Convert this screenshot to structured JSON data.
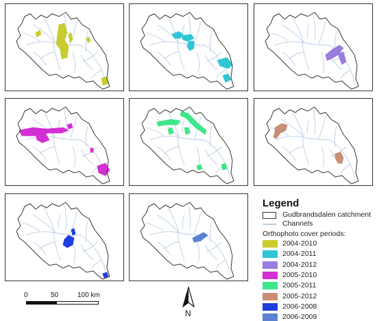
{
  "legend": {
    "title": "Legend",
    "catchment_label": "Gudbrandsdalen catchment",
    "channels_label": "Channels",
    "periods_title": "Orthophoto cover periods:",
    "periods": [
      {
        "label": "2004-2010",
        "color": "#c8cc2e"
      },
      {
        "label": "2004-2011",
        "color": "#2ec6d2"
      },
      {
        "label": "2004-2012",
        "color": "#9a7be0"
      },
      {
        "label": "2005-2010",
        "color": "#d42fd4"
      },
      {
        "label": "2005-2011",
        "color": "#3ee68a"
      },
      {
        "label": "2005-2012",
        "color": "#c98e76"
      },
      {
        "label": "2006-2008",
        "color": "#1e3ee0"
      },
      {
        "label": "2006-2009",
        "color": "#5a82d0"
      }
    ]
  },
  "scalebar": {
    "tick0": "0",
    "tick1": "50",
    "tick2": "100 km"
  },
  "north": "N",
  "colors": {
    "channel": "#b9cde6",
    "outline": "#333333"
  }
}
